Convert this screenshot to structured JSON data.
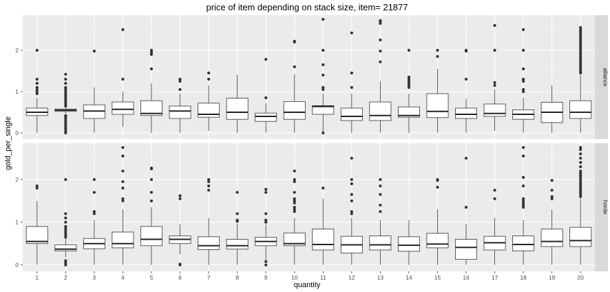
{
  "chart_data": {
    "type": "boxplot",
    "title": "price of item depending on stack size, item= 21877",
    "xlabel": "quantity",
    "ylabel": "gold_per_single",
    "categories": [
      "1",
      "2",
      "3",
      "4",
      "5",
      "6",
      "7",
      "8",
      "9",
      "10",
      "11",
      "12",
      "13",
      "14",
      "15",
      "16",
      "17",
      "18",
      "19",
      "20"
    ],
    "ylim": [
      -0.15,
      2.85
    ],
    "yticks": [
      0,
      1,
      2
    ],
    "grid": true,
    "facets": [
      {
        "name": "alliance",
        "boxes": [
          {
            "q1": 0.42,
            "median": 0.5,
            "q3": 0.6,
            "whisker_low": 0.0,
            "whisker_high": 0.85,
            "outliers": [
              0.95,
              1.0,
              1.05,
              1.1,
              1.2,
              1.3,
              2.0
            ]
          },
          {
            "q1": 0.52,
            "median": 0.55,
            "q3": 0.58,
            "whisker_low": 0.47,
            "whisker_high": 0.62,
            "outliers": [
              0.0,
              0.05,
              0.1,
              0.15,
              0.2,
              0.25,
              0.3,
              0.35,
              0.4,
              0.42,
              0.65,
              0.7,
              0.75,
              0.8,
              0.85,
              0.9,
              0.95,
              1.0,
              1.05,
              1.1,
              1.2,
              1.3,
              1.42
            ]
          },
          {
            "q1": 0.35,
            "median": 0.53,
            "q3": 0.68,
            "whisker_low": 0.0,
            "whisker_high": 1.1,
            "outliers": [
              1.98
            ]
          },
          {
            "q1": 0.45,
            "median": 0.57,
            "q3": 0.75,
            "whisker_low": 0.15,
            "whisker_high": 1.0,
            "outliers": [
              1.3,
              2.5
            ]
          },
          {
            "q1": 0.42,
            "median": 0.47,
            "q3": 0.78,
            "whisker_low": 0.0,
            "whisker_high": 1.2,
            "outliers": [
              1.55,
              1.9,
              1.95,
              2.0
            ]
          },
          {
            "q1": 0.35,
            "median": 0.53,
            "q3": 0.65,
            "whisker_low": 0.0,
            "whisker_high": 0.95,
            "outliers": [
              1.05,
              1.25,
              1.3
            ]
          },
          {
            "q1": 0.38,
            "median": 0.45,
            "q3": 0.72,
            "whisker_low": 0.05,
            "whisker_high": 1.15,
            "outliers": [
              1.3,
              1.45
            ]
          },
          {
            "q1": 0.33,
            "median": 0.5,
            "q3": 0.84,
            "whisker_low": 0.0,
            "whisker_high": 1.4,
            "outliers": []
          },
          {
            "q1": 0.28,
            "median": 0.4,
            "q3": 0.48,
            "whisker_low": 0.0,
            "whisker_high": 0.72,
            "outliers": [
              0.85,
              1.78
            ]
          },
          {
            "q1": 0.33,
            "median": 0.5,
            "q3": 0.76,
            "whisker_low": 0.0,
            "whisker_high": 1.42,
            "outliers": [
              1.6,
              2.2,
              2.22
            ]
          },
          {
            "q1": 0.45,
            "median": 0.64,
            "q3": 0.66,
            "whisker_low": 0.0,
            "whisker_high": 0.95,
            "outliers": [
              0.0,
              1.05,
              1.1,
              1.4,
              1.65,
              2.0,
              2.75
            ]
          },
          {
            "q1": 0.3,
            "median": 0.4,
            "q3": 0.6,
            "whisker_low": 0.0,
            "whisker_high": 0.95,
            "outliers": [
              1.1,
              1.45,
              2.42
            ]
          },
          {
            "q1": 0.3,
            "median": 0.42,
            "q3": 0.75,
            "whisker_low": 0.0,
            "whisker_high": 1.25,
            "outliers": [
              1.72,
              1.98,
              2.25,
              2.65,
              2.7,
              2.72
            ]
          },
          {
            "q1": 0.38,
            "median": 0.42,
            "q3": 0.63,
            "whisker_low": 0.0,
            "whisker_high": 0.95,
            "outliers": [
              1.1,
              1.15,
              1.2,
              1.25,
              1.3,
              1.35,
              2.0
            ]
          },
          {
            "q1": 0.37,
            "median": 0.52,
            "q3": 0.95,
            "whisker_low": 0.0,
            "whisker_high": 1.55,
            "outliers": [
              1.85,
              2.0
            ]
          },
          {
            "q1": 0.35,
            "median": 0.45,
            "q3": 0.6,
            "whisker_low": 0.0,
            "whisker_high": 0.82,
            "outliers": [
              1.3,
              1.98,
              2.0
            ]
          },
          {
            "q1": 0.4,
            "median": 0.47,
            "q3": 0.7,
            "whisker_low": 0.05,
            "whisker_high": 1.05,
            "outliers": [
              1.15,
              1.22,
              2.0,
              2.6
            ]
          },
          {
            "q1": 0.33,
            "median": 0.45,
            "q3": 0.56,
            "whisker_low": 0.0,
            "whisker_high": 0.85,
            "outliers": [
              1.0,
              1.05,
              1.25,
              1.3,
              1.55,
              2.0,
              2.5
            ]
          },
          {
            "q1": 0.25,
            "median": 0.5,
            "q3": 0.74,
            "whisker_low": 0.0,
            "whisker_high": 1.15,
            "outliers": []
          },
          {
            "q1": 0.35,
            "median": 0.5,
            "q3": 0.78,
            "whisker_low": 0.0,
            "whisker_high": 1.4,
            "outliers": [
              1.45,
              1.5,
              1.55,
              1.6,
              1.65,
              1.7,
              1.75,
              1.8,
              1.85,
              1.9,
              1.95,
              2.0,
              2.05,
              2.1,
              2.15,
              2.2,
              2.25,
              2.3,
              2.35,
              2.4,
              2.45,
              2.5,
              2.55
            ]
          }
        ]
      },
      {
        "name": "horde",
        "boxes": [
          {
            "q1": 0.5,
            "median": 0.55,
            "q3": 0.9,
            "whisker_low": 0.0,
            "whisker_high": 1.5,
            "outliers": [
              1.8,
              1.85
            ]
          },
          {
            "q1": 0.33,
            "median": 0.37,
            "q3": 0.47,
            "whisker_low": 0.18,
            "whisker_high": 0.62,
            "outliers": [
              0.0,
              0.05,
              0.1,
              0.65,
              0.7,
              0.75,
              0.8,
              0.85,
              0.9,
              1.0,
              1.1,
              1.2,
              2.0
            ]
          },
          {
            "q1": 0.38,
            "median": 0.5,
            "q3": 0.62,
            "whisker_low": 0.0,
            "whisker_high": 1.05,
            "outliers": [
              1.2,
              1.25,
              1.7,
              2.0
            ]
          },
          {
            "q1": 0.4,
            "median": 0.5,
            "q3": 0.77,
            "whisker_low": 0.0,
            "whisker_high": 1.3,
            "outliers": [
              1.5,
              1.55,
              1.8,
              1.95,
              2.2,
              2.55,
              2.75
            ]
          },
          {
            "q1": 0.45,
            "median": 0.6,
            "q3": 0.9,
            "whisker_low": 0.0,
            "whisker_high": 1.35,
            "outliers": [
              1.5,
              1.7,
              2.0,
              2.25,
              2.27
            ]
          },
          {
            "q1": 0.5,
            "median": 0.6,
            "q3": 0.68,
            "whisker_low": 0.25,
            "whisker_high": 0.95,
            "outliers": [
              0.0,
              0.02,
              1.55,
              1.62
            ]
          },
          {
            "q1": 0.36,
            "median": 0.45,
            "q3": 0.66,
            "whisker_low": 0.0,
            "whisker_high": 1.1,
            "outliers": [
              1.75,
              1.85,
              1.95,
              2.0
            ]
          },
          {
            "q1": 0.37,
            "median": 0.45,
            "q3": 0.6,
            "whisker_low": 0.0,
            "whisker_high": 0.95,
            "outliers": [
              1.02,
              1.05,
              1.2,
              1.7
            ]
          },
          {
            "q1": 0.45,
            "median": 0.55,
            "q3": 0.65,
            "whisker_low": 0.12,
            "whisker_high": 0.95,
            "outliers": [
              0.0,
              0.08,
              1.0,
              1.05,
              1.2,
              1.7,
              1.77
            ]
          },
          {
            "q1": 0.45,
            "median": 0.5,
            "q3": 0.75,
            "whisker_low": 0.0,
            "whisker_high": 1.1,
            "outliers": [
              1.25,
              1.3,
              1.35,
              1.45,
              1.5,
              1.55,
              1.7,
              1.95,
              2.0,
              2.2
            ]
          },
          {
            "q1": 0.35,
            "median": 0.48,
            "q3": 0.84,
            "whisker_low": 0.0,
            "whisker_high": 1.55,
            "outliers": [
              1.8
            ]
          },
          {
            "q1": 0.28,
            "median": 0.47,
            "q3": 0.67,
            "whisker_low": 0.0,
            "whisker_high": 1.1,
            "outliers": [
              1.2,
              1.25,
              1.5,
              1.65,
              1.9,
              2.0,
              2.5
            ]
          },
          {
            "q1": 0.35,
            "median": 0.47,
            "q3": 0.68,
            "whisker_low": 0.0,
            "whisker_high": 1.05,
            "outliers": [
              1.25,
              1.4,
              1.65,
              1.85,
              2.0
            ]
          },
          {
            "q1": 0.32,
            "median": 0.46,
            "q3": 0.66,
            "whisker_low": 0.0,
            "whisker_high": 1.05,
            "outliers": []
          },
          {
            "q1": 0.4,
            "median": 0.49,
            "q3": 0.74,
            "whisker_low": 0.0,
            "whisker_high": 1.3,
            "outliers": [
              1.82,
              1.98,
              2.0
            ]
          },
          {
            "q1": 0.13,
            "median": 0.41,
            "q3": 0.6,
            "whisker_low": 0.0,
            "whisker_high": 0.95,
            "outliers": [
              1.35,
              2.5
            ]
          },
          {
            "q1": 0.35,
            "median": 0.52,
            "q3": 0.67,
            "whisker_low": 0.0,
            "whisker_high": 1.1,
            "outliers": [
              1.55,
              1.75
            ]
          },
          {
            "q1": 0.33,
            "median": 0.48,
            "q3": 0.68,
            "whisker_low": 0.0,
            "whisker_high": 1.05,
            "outliers": [
              1.35,
              1.4,
              1.45,
              1.5,
              1.55,
              1.85,
              2.05,
              2.55,
              2.75
            ]
          },
          {
            "q1": 0.43,
            "median": 0.55,
            "q3": 0.84,
            "whisker_low": 0.0,
            "whisker_high": 1.3,
            "outliers": [
              1.55,
              1.6,
              1.75,
              1.98
            ]
          },
          {
            "q1": 0.43,
            "median": 0.57,
            "q3": 0.88,
            "whisker_low": 0.0,
            "whisker_high": 1.55,
            "outliers": [
              1.6,
              1.65,
              1.7,
              1.75,
              1.8,
              1.85,
              1.9,
              1.95,
              2.0,
              2.05,
              2.1,
              2.15,
              2.2,
              2.3,
              2.4,
              2.5,
              2.6,
              2.7,
              2.75
            ]
          }
        ]
      }
    ]
  }
}
